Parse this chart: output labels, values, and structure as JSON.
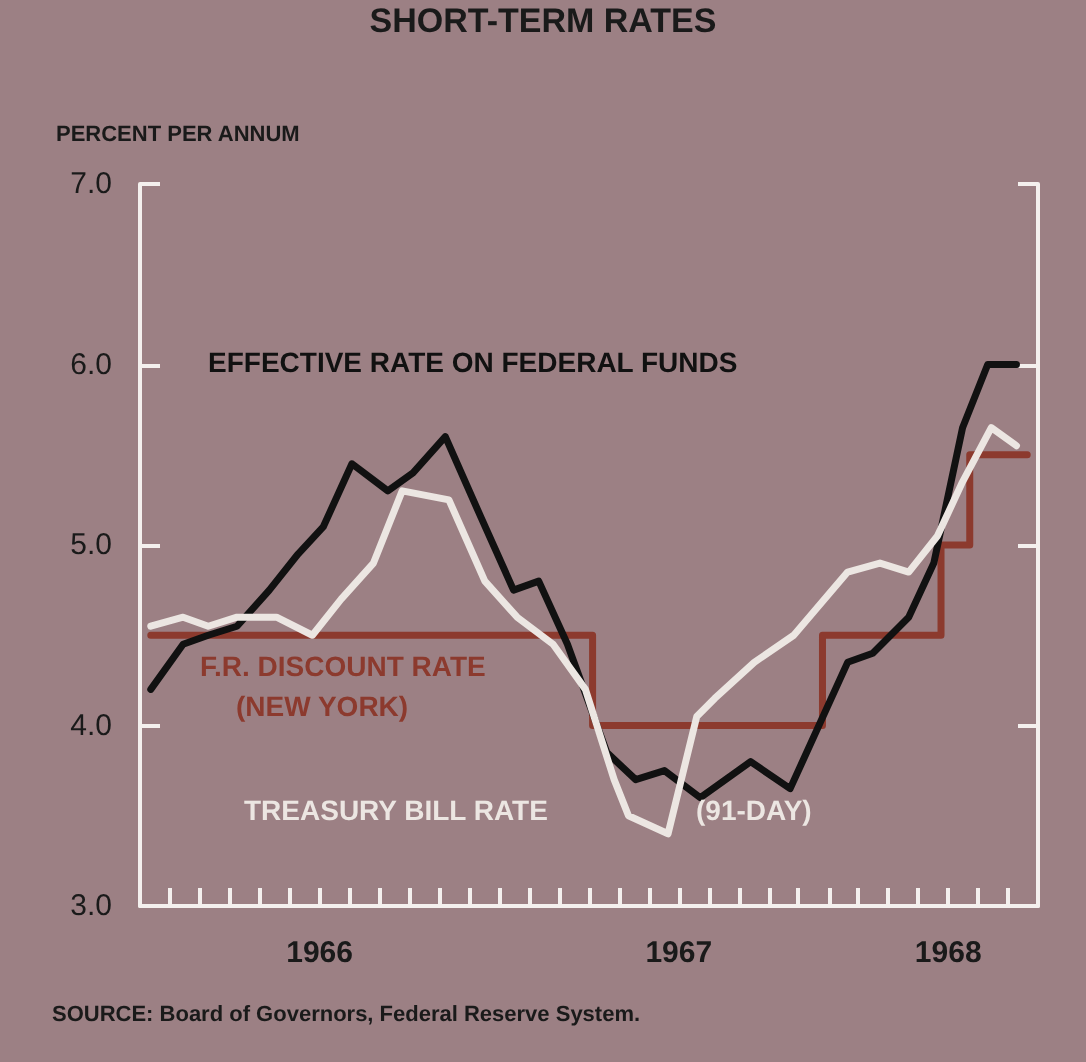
{
  "chart_data": {
    "type": "line",
    "title": "SHORT-TERM RATES",
    "ylabel": "PERCENT PER ANNUM",
    "annotations": [
      "SOURCE: Board of Governors, Federal Reserve System."
    ],
    "xlim": [
      1966,
      1968.5
    ],
    "ylim": [
      3,
      7
    ],
    "yticks": [
      {
        "value": 3,
        "label": "3.0"
      },
      {
        "value": 4,
        "label": "4.0"
      },
      {
        "value": 5,
        "label": "5.0"
      },
      {
        "value": 6,
        "label": "6.0"
      },
      {
        "value": 7,
        "label": "7.0"
      }
    ],
    "xticks": [
      {
        "value": 1966.083,
        "label": null
      },
      {
        "value": 1966.167,
        "label": null
      },
      {
        "value": 1966.25,
        "label": null
      },
      {
        "value": 1966.333,
        "label": null
      },
      {
        "value": 1966.417,
        "label": null
      },
      {
        "value": 1966.5,
        "label": "1966"
      },
      {
        "value": 1966.583,
        "label": null
      },
      {
        "value": 1966.667,
        "label": null
      },
      {
        "value": 1966.75,
        "label": null
      },
      {
        "value": 1966.833,
        "label": null
      },
      {
        "value": 1966.917,
        "label": null
      },
      {
        "value": 1967,
        "label": null
      },
      {
        "value": 1967.083,
        "label": null
      },
      {
        "value": 1967.167,
        "label": null
      },
      {
        "value": 1967.25,
        "label": null
      },
      {
        "value": 1967.333,
        "label": null
      },
      {
        "value": 1967.417,
        "label": null
      },
      {
        "value": 1967.5,
        "label": "1967"
      },
      {
        "value": 1967.583,
        "label": null
      },
      {
        "value": 1967.667,
        "label": null
      },
      {
        "value": 1967.75,
        "label": null
      },
      {
        "value": 1967.833,
        "label": null
      },
      {
        "value": 1967.917,
        "label": null
      },
      {
        "value": 1968,
        "label": null
      },
      {
        "value": 1968.083,
        "label": null
      },
      {
        "value": 1968.167,
        "label": null
      },
      {
        "value": 1968.25,
        "label": "1968"
      },
      {
        "value": 1968.333,
        "label": null
      },
      {
        "value": 1968.417,
        "label": null
      }
    ],
    "series": [
      {
        "name": "EFFECTIVE RATE ON FEDERAL FUNDS",
        "color": "#111111",
        "x": [
          1966.03,
          1966.12,
          1966.19,
          1966.27,
          1966.36,
          1966.44,
          1966.51,
          1966.59,
          1966.69,
          1966.76,
          1966.85,
          1966.95,
          1967.04,
          1967.11,
          1967.19,
          1967.3,
          1967.38,
          1967.46,
          1967.56,
          1967.7,
          1967.81,
          1967.97,
          1968.04,
          1968.14,
          1968.21,
          1968.29,
          1968.36,
          1968.44
        ],
        "values": [
          4.2,
          4.45,
          4.5,
          4.55,
          4.75,
          4.95,
          5.1,
          5.45,
          5.3,
          5.4,
          5.6,
          5.15,
          4.75,
          4.8,
          4.45,
          3.85,
          3.7,
          3.75,
          3.6,
          3.8,
          3.65,
          4.35,
          4.4,
          4.6,
          4.9,
          5.65,
          6.0,
          6.0
        ]
      },
      {
        "name": "F.R. DISCOUNT RATE (NEW YORK)",
        "type": "step",
        "color": "#8c3a2e",
        "x": [
          1966.03,
          1967.26,
          1967.9,
          1968.23,
          1968.31,
          1968.47
        ],
        "values": [
          4.5,
          4.0,
          4.5,
          5.0,
          5.5,
          5.5
        ]
      },
      {
        "name": "TREASURY BILL RATE (91-DAY)",
        "color": "#ece6e2",
        "x": [
          1966.03,
          1966.12,
          1966.19,
          1966.27,
          1966.38,
          1966.48,
          1966.56,
          1966.65,
          1966.73,
          1966.86,
          1966.96,
          1967.05,
          1967.15,
          1967.24,
          1967.32,
          1967.36,
          1967.47,
          1967.55,
          1967.6,
          1967.71,
          1967.82,
          1967.97,
          1968.06,
          1968.14,
          1968.22,
          1968.29,
          1968.37,
          1968.44
        ],
        "values": [
          4.55,
          4.6,
          4.55,
          4.6,
          4.6,
          4.5,
          4.7,
          4.9,
          5.3,
          5.25,
          4.8,
          4.6,
          4.45,
          4.2,
          3.7,
          3.5,
          3.4,
          4.05,
          4.15,
          4.35,
          4.5,
          4.85,
          4.9,
          4.85,
          5.05,
          5.35,
          5.65,
          5.55
        ]
      }
    ]
  }
}
